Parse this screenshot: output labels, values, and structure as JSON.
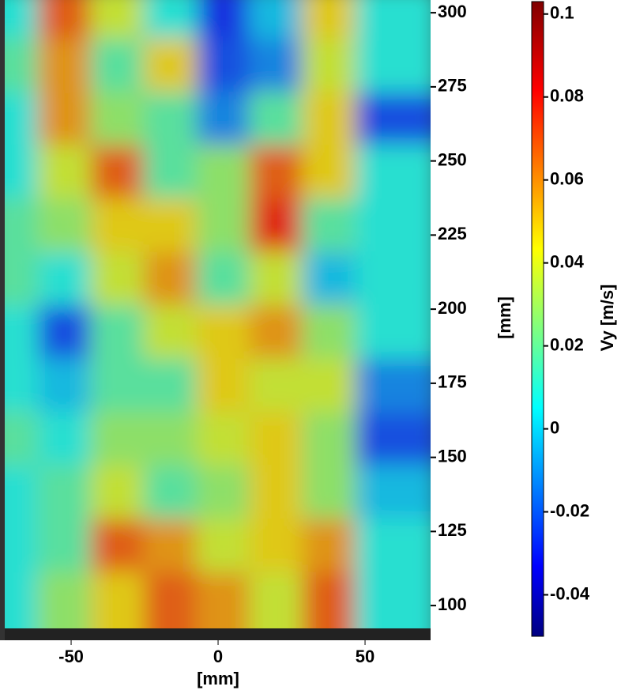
{
  "chart_data": {
    "type": "heatmap",
    "colormap": "jet",
    "x_label": "[mm]",
    "y_label": "[mm]",
    "colorbar_label": "Vy [m/s]",
    "x": [
      -65,
      -47,
      -29,
      -11,
      7,
      25,
      43,
      61
    ],
    "y": [
      295,
      277,
      259,
      241,
      223,
      205,
      187,
      169,
      151,
      133,
      115,
      97
    ],
    "z": [
      [
        0.01,
        0.07,
        0.04,
        0.01,
        -0.025,
        0.0,
        0.05,
        0.01
      ],
      [
        0.02,
        0.06,
        0.02,
        0.05,
        -0.02,
        -0.01,
        0.04,
        0.01
      ],
      [
        0.01,
        0.06,
        0.03,
        0.02,
        -0.01,
        0.02,
        0.05,
        -0.02
      ],
      [
        0.01,
        0.04,
        0.07,
        0.02,
        0.03,
        0.07,
        0.05,
        0.01
      ],
      [
        0.02,
        0.03,
        0.05,
        0.05,
        0.03,
        0.08,
        0.02,
        0.01
      ],
      [
        0.02,
        0.01,
        0.04,
        0.06,
        0.02,
        0.04,
        0.0,
        0.01
      ],
      [
        0.01,
        -0.02,
        0.02,
        0.04,
        0.05,
        0.06,
        0.03,
        0.01
      ],
      [
        0.01,
        0.0,
        0.02,
        0.02,
        0.05,
        0.04,
        0.04,
        -0.01
      ],
      [
        0.02,
        0.01,
        0.03,
        0.03,
        0.04,
        0.05,
        0.03,
        -0.02
      ],
      [
        0.01,
        0.02,
        0.04,
        0.02,
        0.03,
        0.05,
        0.03,
        0.0
      ],
      [
        0.01,
        0.02,
        0.07,
        0.06,
        0.04,
        0.05,
        0.06,
        0.01
      ],
      [
        0.01,
        0.03,
        0.05,
        0.07,
        0.06,
        0.04,
        0.07,
        0.01
      ]
    ],
    "xlim": [
      -74.2,
      72.3
    ],
    "ylim": [
      88.3,
      304.3
    ],
    "xticks": [
      -50,
      0,
      50
    ],
    "yticks": [
      100,
      125,
      150,
      175,
      200,
      225,
      250,
      275,
      300
    ],
    "clim": [
      -0.05,
      0.103
    ],
    "cticks": [
      -0.04,
      -0.02,
      0,
      0.02,
      0.04,
      0.06,
      0.08,
      0.1
    ]
  }
}
